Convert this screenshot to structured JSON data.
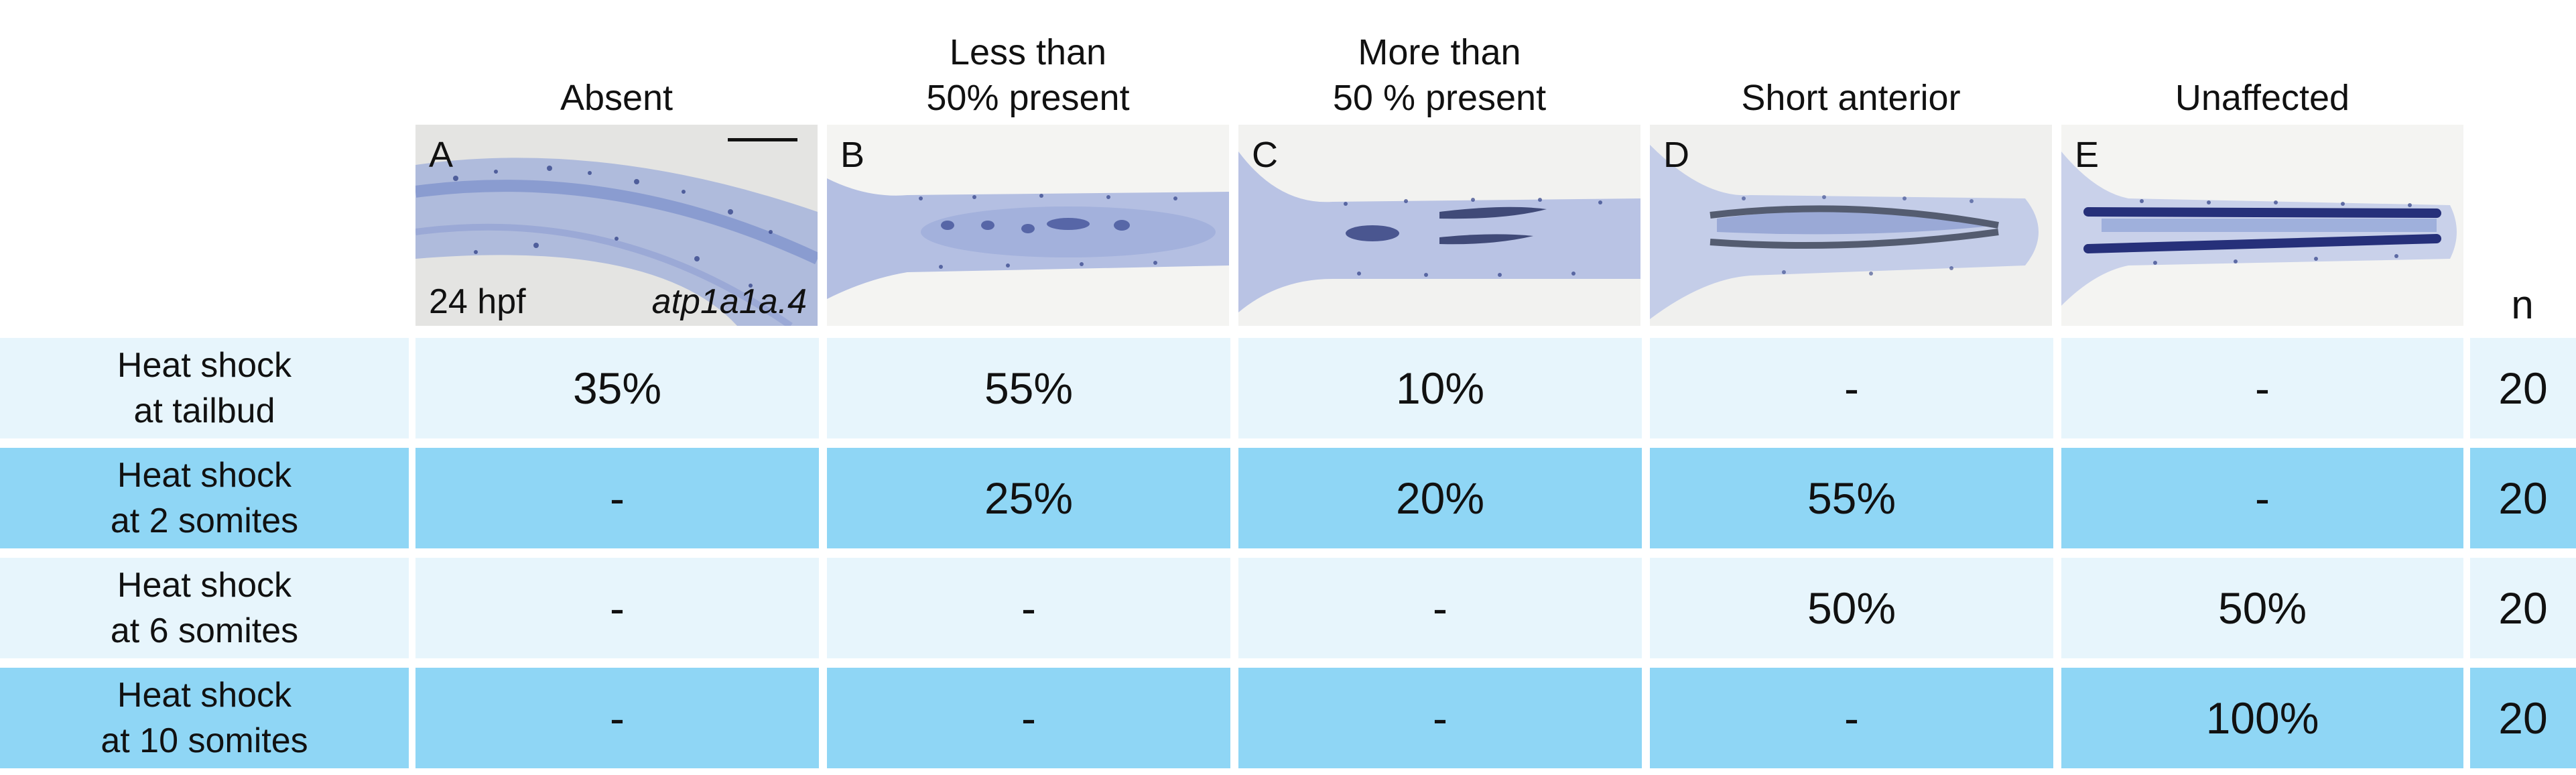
{
  "columns": [
    {
      "label": "Absent",
      "letter": "A"
    },
    {
      "label": "Less than\n50% present",
      "letter": "B"
    },
    {
      "label": "More than\n50 % present",
      "letter": "C"
    },
    {
      "label": "Short anterior",
      "letter": "D"
    },
    {
      "label": "Unaffected",
      "letter": "E"
    }
  ],
  "panel_a_stage": "24 hpf",
  "panel_a_gene": "atp1a1a.4",
  "n_header": "n",
  "rows": [
    {
      "label": "Heat shock\nat tailbud",
      "values": [
        "35%",
        "55%",
        "10%",
        "-",
        "-"
      ],
      "n": "20"
    },
    {
      "label": "Heat shock\nat 2 somites",
      "values": [
        "-",
        "25%",
        "20%",
        "55%",
        "-"
      ],
      "n": "20"
    },
    {
      "label": "Heat shock\nat 6 somites",
      "values": [
        "-",
        "-",
        "-",
        "50%",
        "50%"
      ],
      "n": "20"
    },
    {
      "label": "Heat shock\nat 10 somites",
      "values": [
        "-",
        "-",
        "-",
        "-",
        "100%"
      ],
      "n": "20"
    }
  ],
  "colors": {
    "row_light": "#e7f5fc",
    "row_dark": "#8fd6f5",
    "stain": "#3b4f9e"
  }
}
